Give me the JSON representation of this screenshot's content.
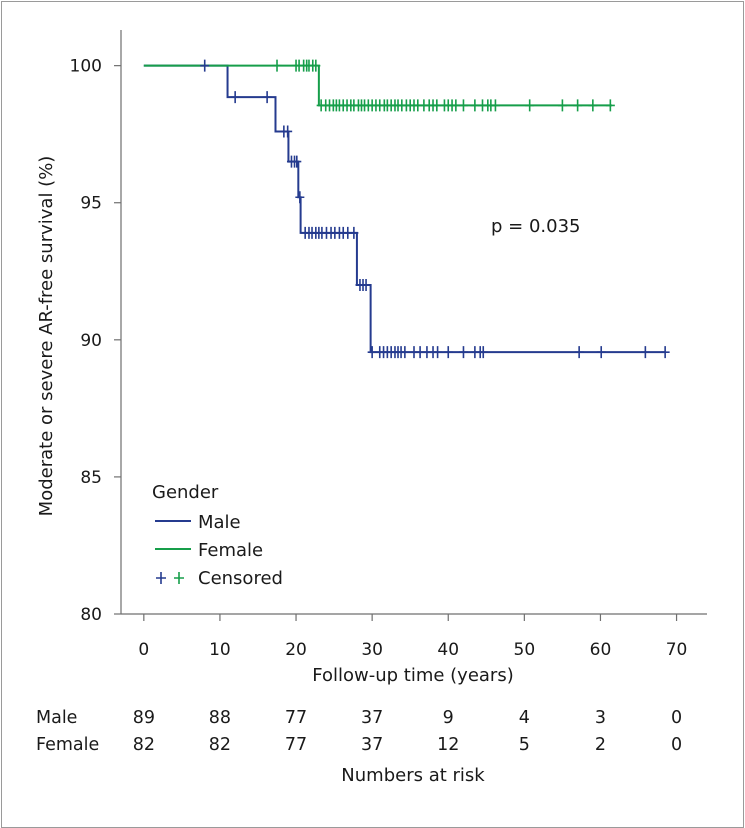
{
  "chart_data": {
    "type": "line",
    "subtype": "kaplan-meier",
    "xlabel": "Follow-up time (years)",
    "ylabel": "Moderate or severe AR-free survival (%)",
    "xlim": [
      -3,
      74
    ],
    "ylim": [
      80,
      101.3
    ],
    "x_ticks": [
      "0",
      "10",
      "20",
      "30",
      "40",
      "50",
      "60",
      "70"
    ],
    "y_ticks": [
      "80",
      "85",
      "90",
      "95",
      "100"
    ],
    "grid": false,
    "annotation": "p = 0.035",
    "legend": {
      "title": "Gender",
      "placement": "bottom-left",
      "censored_label": "Censored",
      "entries": [
        {
          "name": "Male",
          "color": "#253b8f"
        },
        {
          "name": "Female",
          "color": "#169e4a"
        }
      ]
    },
    "series": [
      {
        "name": "Male",
        "color": "#253b8f",
        "steps": [
          [
            0,
            100
          ],
          [
            11,
            98.85
          ],
          [
            17.3,
            97.6
          ],
          [
            19,
            96.5
          ],
          [
            20.3,
            95.2
          ],
          [
            20.6,
            93.9
          ],
          [
            28,
            92.0
          ],
          [
            29.8,
            89.55
          ],
          [
            68.5,
            89.55
          ]
        ],
        "censored": [
          8,
          12,
          16.2,
          18.4,
          18.9,
          19.4,
          19.8,
          20.1,
          20.5,
          21.2,
          21.7,
          22.1,
          22.6,
          23,
          23.4,
          24,
          24.6,
          25.1,
          25.7,
          26.2,
          26.8,
          27.6,
          28.4,
          28.8,
          29.2,
          30,
          31,
          31.5,
          32,
          32.5,
          33,
          33.4,
          33.8,
          34.3,
          35.5,
          36.3,
          37.2,
          38,
          38.6,
          40,
          42,
          43.5,
          44.2,
          44.6,
          57.2,
          60.1,
          65.9,
          68.5
        ]
      },
      {
        "name": "Female",
        "color": "#169e4a",
        "steps": [
          [
            0,
            100
          ],
          [
            23,
            98.55
          ],
          [
            61.5,
            98.55
          ]
        ],
        "censored": [
          17.5,
          20,
          20.4,
          21,
          21.4,
          21.7,
          22.2,
          22.6,
          23.3,
          23.9,
          24.4,
          24.9,
          25.3,
          25.7,
          26.2,
          26.7,
          27.2,
          27.6,
          28.2,
          28.6,
          29,
          29.5,
          30,
          30.5,
          31,
          31.6,
          32,
          32.5,
          33,
          33.4,
          33.9,
          34.5,
          35,
          35.5,
          36,
          36.8,
          37.5,
          38,
          38.5,
          39.5,
          40,
          40.5,
          41,
          42,
          43.5,
          44.5,
          45.2,
          45.6,
          46.2,
          50.7,
          55,
          57,
          59,
          61.3
        ]
      }
    ],
    "risk_table": {
      "title": "Numbers at risk",
      "times": [
        0,
        10,
        20,
        30,
        40,
        50,
        60,
        70
      ],
      "rows": [
        {
          "name": "Male",
          "values": [
            "89",
            "88",
            "77",
            "37",
            "9",
            "4",
            "3",
            "0"
          ]
        },
        {
          "name": "Female",
          "values": [
            "82",
            "82",
            "77",
            "37",
            "12",
            "5",
            "2",
            "0"
          ]
        }
      ]
    }
  }
}
